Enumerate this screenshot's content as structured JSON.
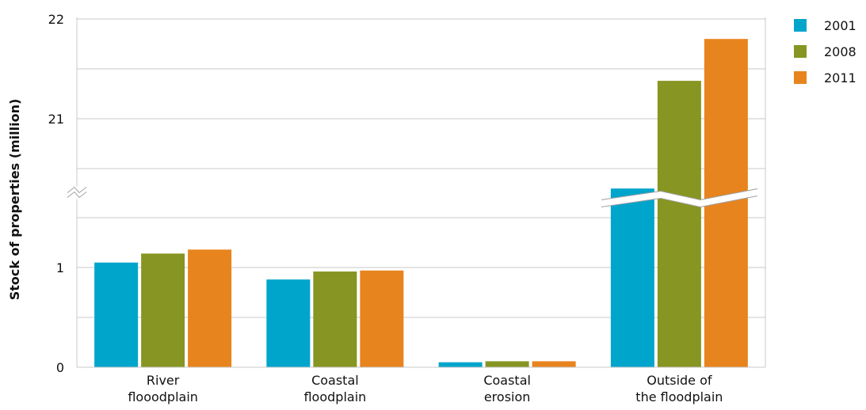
{
  "chart_data": {
    "type": "bar",
    "title": "",
    "xlabel": "",
    "ylabel": "Stock of properties (million)",
    "categories": [
      [
        "River",
        "flooodplain"
      ],
      [
        "Coastal",
        "floodplain"
      ],
      [
        "Coastal",
        "erosion"
      ],
      [
        "Outside of",
        "the floodplain"
      ]
    ],
    "series": [
      {
        "name": "2001",
        "color": "#00a5cc",
        "values": [
          1.05,
          0.88,
          0.05,
          20.3
        ]
      },
      {
        "name": "2008",
        "color": "#879522",
        "values": [
          1.14,
          0.96,
          0.06,
          21.38
        ]
      },
      {
        "name": "2011",
        "color": "#e8841e",
        "values": [
          1.18,
          0.97,
          0.06,
          21.8
        ]
      }
    ],
    "axis_break": {
      "below": 1.75,
      "resumes_at": 20
    },
    "y_ticks": [
      {
        "value": 0,
        "label": "0"
      },
      {
        "value": 1,
        "label": "1"
      },
      {
        "value": 21,
        "label": "21"
      },
      {
        "value": 22,
        "label": "22"
      }
    ],
    "ylim": [
      0,
      22
    ],
    "grid": true,
    "legend_position": "right"
  }
}
